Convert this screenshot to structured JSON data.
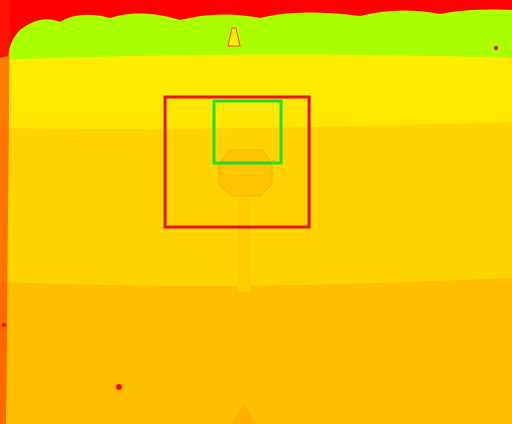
{
  "image": {
    "kind": "false-color depth map",
    "colors": {
      "near": "#ffbf00",
      "mid": "#ffd400",
      "far": "#ffee00",
      "farthest": "#aaff00",
      "invalid": "#ff0000",
      "detection_outer": "#e8121a",
      "detection_inner": "#22dd22"
    },
    "objects": [
      {
        "name": "stop-sign",
        "shape": "octagon-on-pole"
      }
    ],
    "overlays": [
      {
        "name": "outer-detection-box",
        "color_key": "detection_outer"
      },
      {
        "name": "inner-detection-box",
        "color_key": "detection_inner"
      }
    ]
  }
}
